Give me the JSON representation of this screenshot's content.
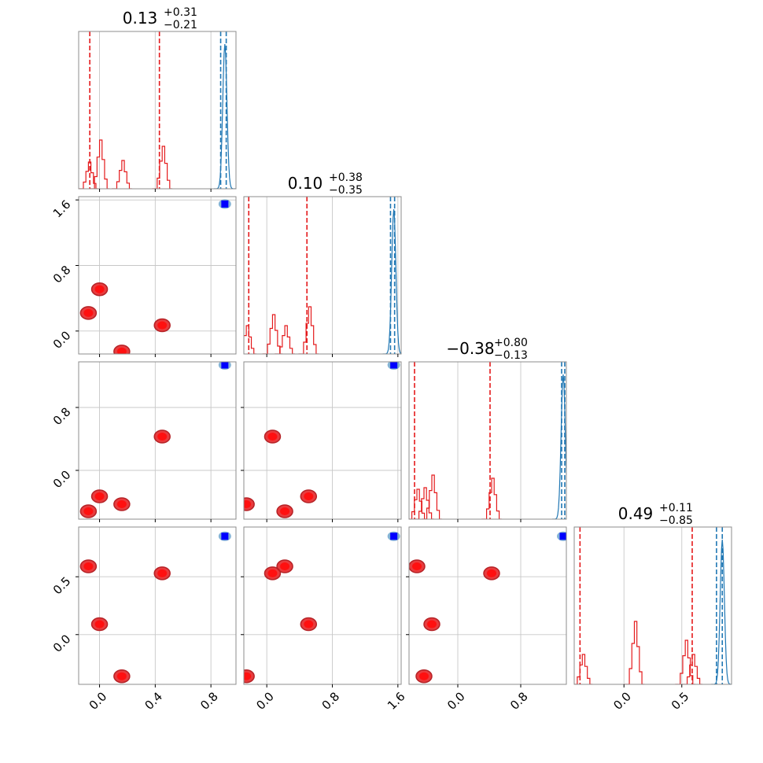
{
  "chart_data": {
    "type": "corner",
    "grid": true,
    "colors": {
      "blue": "#1f77b4",
      "red": "#e41a1c",
      "dark_blue": "#0000ff"
    },
    "variables": [
      {
        "index": 0,
        "range": [
          -0.15,
          0.98
        ],
        "ticks": [
          0.0,
          0.4,
          0.8
        ],
        "tick_labels": [
          "0.0",
          "0.4",
          "0.8"
        ],
        "title": {
          "value": "0.13",
          "plus": "+0.31",
          "minus": "−0.21"
        }
      },
      {
        "index": 1,
        "range": [
          -0.28,
          1.64
        ],
        "ticks": [
          0.0,
          0.8,
          1.6
        ],
        "tick_labels": [
          "0.0",
          "0.8",
          "1.6"
        ],
        "title": {
          "value": "0.10",
          "plus": "+0.38",
          "minus": "−0.35"
        }
      },
      {
        "index": 2,
        "range": [
          -0.62,
          1.38
        ],
        "ticks": [
          0.0,
          0.8
        ],
        "tick_labels": [
          "0.0",
          "0.8"
        ],
        "title": {
          "value": "−0.38",
          "plus": "+0.80",
          "minus": "−0.13"
        }
      },
      {
        "index": 3,
        "range": [
          -0.43,
          0.93
        ],
        "ticks": [
          0.0,
          0.5
        ],
        "tick_labels": [
          "0.0",
          "0.5"
        ],
        "title": {
          "value": "0.49",
          "plus": "+0.11",
          "minus": "−0.85"
        }
      }
    ],
    "red_modes": [
      [
        -0.08,
        0.22,
        -0.52,
        0.59
      ],
      [
        0.0,
        0.51,
        -0.33,
        0.09
      ],
      [
        0.16,
        -0.25,
        -0.43,
        -0.36
      ],
      [
        0.45,
        0.07,
        0.43,
        0.53
      ]
    ],
    "blue_mode": [
      0.9,
      1.55,
      1.34,
      0.85
    ],
    "dashed_lines": {
      "red": [
        [
          -0.07,
          0.43
        ],
        [
          -0.22,
          0.49
        ],
        [
          -0.55,
          0.41
        ],
        [
          -0.38,
          0.59
        ]
      ],
      "blue": [
        [
          0.87,
          0.91
        ],
        [
          1.51,
          1.56
        ],
        [
          1.32,
          1.36
        ],
        [
          0.8,
          0.85
        ]
      ]
    },
    "histogram_red_peak_heights": [
      [
        0.17,
        0.18,
        0.19,
        0.19
      ],
      [
        0.31,
        0.3,
        0.28,
        0.4
      ],
      [
        0.18,
        0.18,
        0.2,
        0.19
      ],
      [
        0.27,
        0.25,
        0.26,
        0.28
      ]
    ],
    "histogram_blue_peak_height": 0.92
  }
}
